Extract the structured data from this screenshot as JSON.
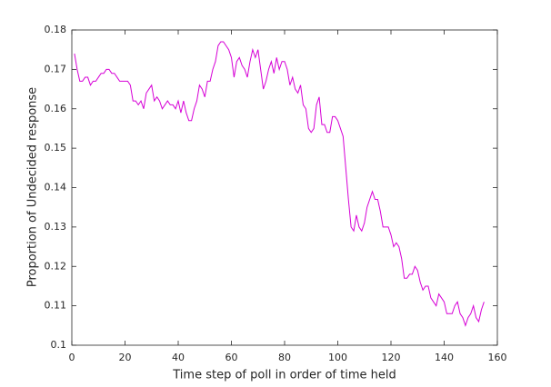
{
  "chart_data": {
    "type": "line",
    "xlabel": "Time step of poll in order of time held",
    "ylabel": "Proportion of Undecided response",
    "color": "#d600d6",
    "x": [
      1,
      2,
      3,
      4,
      5,
      6,
      7,
      8,
      9,
      10,
      11,
      12,
      13,
      14,
      15,
      16,
      17,
      18,
      19,
      20,
      21,
      22,
      23,
      24,
      25,
      26,
      27,
      28,
      29,
      30,
      31,
      32,
      33,
      34,
      35,
      36,
      37,
      38,
      39,
      40,
      41,
      42,
      43,
      44,
      45,
      46,
      47,
      48,
      49,
      50,
      51,
      52,
      53,
      54,
      55,
      56,
      57,
      58,
      59,
      60,
      61,
      62,
      63,
      64,
      65,
      66,
      67,
      68,
      69,
      70,
      71,
      72,
      73,
      74,
      75,
      76,
      77,
      78,
      79,
      80,
      81,
      82,
      83,
      84,
      85,
      86,
      87,
      88,
      89,
      90,
      91,
      92,
      93,
      94,
      95,
      96,
      97,
      98,
      99,
      100,
      101,
      102,
      103,
      104,
      105,
      106,
      107,
      108,
      109,
      110,
      111,
      112,
      113,
      114,
      115,
      116,
      117,
      118,
      119,
      120,
      121,
      122,
      123,
      124,
      125,
      126,
      127,
      128,
      129,
      130,
      131,
      132,
      133,
      134,
      135,
      136,
      137,
      138,
      139,
      140,
      141,
      142,
      143,
      144,
      145,
      146,
      147,
      148,
      149,
      150,
      151,
      152,
      153,
      154,
      155
    ],
    "values": [
      0.174,
      0.17,
      0.167,
      0.167,
      0.168,
      0.168,
      0.166,
      0.167,
      0.167,
      0.168,
      0.169,
      0.169,
      0.17,
      0.17,
      0.169,
      0.169,
      0.168,
      0.167,
      0.167,
      0.167,
      0.167,
      0.166,
      0.162,
      0.162,
      0.161,
      0.162,
      0.16,
      0.164,
      0.165,
      0.166,
      0.162,
      0.163,
      0.162,
      0.16,
      0.161,
      0.162,
      0.161,
      0.161,
      0.16,
      0.162,
      0.159,
      0.162,
      0.159,
      0.157,
      0.157,
      0.16,
      0.162,
      0.166,
      0.165,
      0.163,
      0.167,
      0.167,
      0.17,
      0.172,
      0.176,
      0.177,
      0.177,
      0.176,
      0.175,
      0.173,
      0.168,
      0.172,
      0.173,
      0.171,
      0.17,
      0.168,
      0.172,
      0.175,
      0.173,
      0.175,
      0.17,
      0.165,
      0.167,
      0.17,
      0.172,
      0.169,
      0.173,
      0.17,
      0.172,
      0.172,
      0.17,
      0.166,
      0.168,
      0.165,
      0.164,
      0.166,
      0.161,
      0.16,
      0.155,
      0.154,
      0.155,
      0.161,
      0.163,
      0.156,
      0.156,
      0.154,
      0.154,
      0.158,
      0.158,
      0.157,
      0.155,
      0.153,
      0.145,
      0.137,
      0.13,
      0.129,
      0.133,
      0.13,
      0.129,
      0.131,
      0.135,
      0.137,
      0.139,
      0.137,
      0.137,
      0.134,
      0.13,
      0.13,
      0.13,
      0.128,
      0.125,
      0.126,
      0.125,
      0.122,
      0.117,
      0.117,
      0.118,
      0.118,
      0.12,
      0.119,
      0.116,
      0.114,
      0.115,
      0.115,
      0.112,
      0.111,
      0.11,
      0.113,
      0.112,
      0.111,
      0.108,
      0.108,
      0.108,
      0.11,
      0.111,
      0.108,
      0.107,
      0.105,
      0.107,
      0.108,
      0.11,
      0.107,
      0.106,
      0.109,
      0.111
    ],
    "xlim": [
      0,
      160
    ],
    "xticks": [
      0,
      20,
      40,
      60,
      80,
      100,
      120,
      140,
      160
    ],
    "ylim": [
      0.1,
      0.18
    ],
    "yticks": [
      {
        "value": 0.1,
        "label": "0.1"
      },
      {
        "value": 0.11,
        "label": "0.11"
      },
      {
        "value": 0.12,
        "label": "0.12"
      },
      {
        "value": 0.13,
        "label": "0.13"
      },
      {
        "value": 0.14,
        "label": "0.14"
      },
      {
        "value": 0.15,
        "label": "0.15"
      },
      {
        "value": 0.16,
        "label": "0.16"
      },
      {
        "value": 0.17,
        "label": "0.17"
      },
      {
        "value": 0.18,
        "label": "0.18"
      }
    ]
  }
}
